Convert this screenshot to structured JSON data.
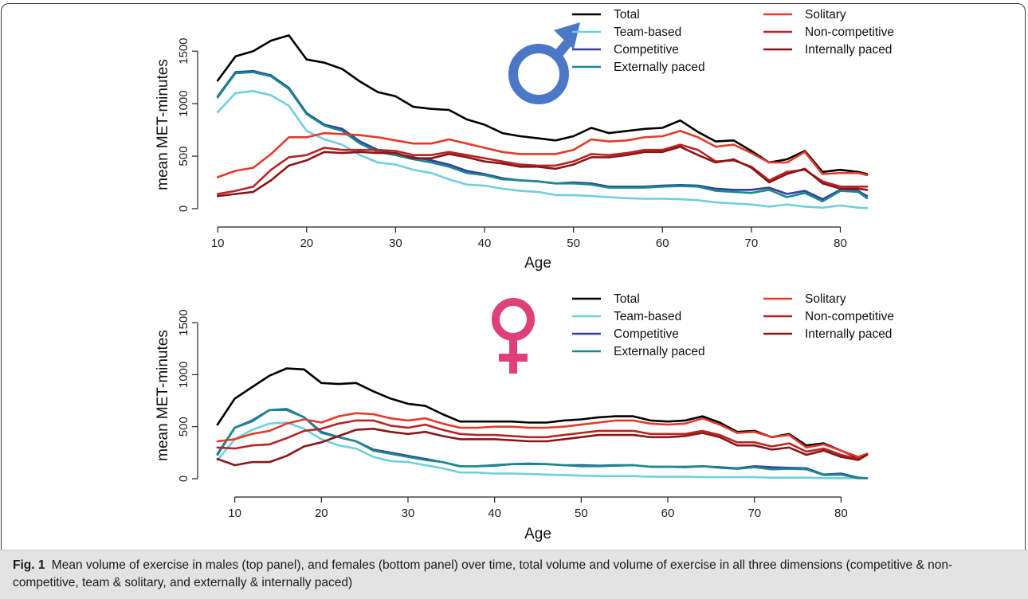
{
  "colors": {
    "total": "#000000",
    "team_based": "#6fcfdc",
    "competitive": "#3340a0",
    "externally_paced": "#1a8a8c",
    "solitary": "#e53a2a",
    "non_competitive": "#b72424",
    "internally_paced": "#8a1616",
    "male_symbol": "#4a78c6",
    "female_symbol": "#e0407a"
  },
  "chart_data": [
    {
      "type": "line",
      "panel": "male",
      "symbol": "male-symbol",
      "xlabel": "Age",
      "ylabel": "mean MET-minutes",
      "xlim": [
        9,
        83
      ],
      "ylim": [
        0,
        1600
      ],
      "xticks": [
        10,
        20,
        30,
        40,
        50,
        60,
        70,
        80
      ],
      "yticks": [
        0,
        500,
        1000,
        1500
      ],
      "legend_left": [
        "Total",
        "Team-based",
        "Competitive",
        "Externally paced"
      ],
      "legend_right": [
        "Solitary",
        "Non-competitive",
        "Internally paced"
      ],
      "x": [
        10,
        12,
        14,
        16,
        18,
        20,
        22,
        24,
        26,
        28,
        30,
        32,
        34,
        36,
        38,
        40,
        42,
        44,
        46,
        48,
        50,
        52,
        54,
        56,
        58,
        60,
        62,
        64,
        66,
        68,
        70,
        72,
        74,
        76,
        78,
        80,
        82,
        83
      ],
      "series": [
        {
          "name": "Total",
          "color_key": "total",
          "values": [
            1220,
            1450,
            1500,
            1600,
            1650,
            1420,
            1390,
            1330,
            1210,
            1110,
            1070,
            970,
            950,
            940,
            850,
            800,
            720,
            690,
            670,
            650,
            690,
            770,
            720,
            740,
            760,
            770,
            840,
            730,
            640,
            650,
            550,
            440,
            470,
            550,
            350,
            370,
            350,
            330
          ]
        },
        {
          "name": "Team-based",
          "color_key": "team_based",
          "values": [
            920,
            1100,
            1120,
            1080,
            980,
            740,
            660,
            610,
            510,
            440,
            420,
            370,
            340,
            280,
            230,
            220,
            190,
            170,
            160,
            130,
            130,
            120,
            110,
            100,
            95,
            95,
            90,
            80,
            60,
            50,
            40,
            20,
            40,
            20,
            10,
            30,
            10,
            5
          ]
        },
        {
          "name": "Competitive",
          "color_key": "competitive",
          "values": [
            1070,
            1300,
            1310,
            1270,
            1150,
            910,
            800,
            760,
            640,
            560,
            520,
            490,
            460,
            420,
            360,
            330,
            290,
            270,
            260,
            240,
            250,
            240,
            210,
            210,
            210,
            220,
            225,
            220,
            190,
            180,
            180,
            200,
            140,
            170,
            90,
            180,
            170,
            120
          ]
        },
        {
          "name": "Externally paced",
          "color_key": "externally_paced",
          "values": [
            1060,
            1290,
            1300,
            1260,
            1140,
            900,
            790,
            740,
            620,
            540,
            510,
            470,
            440,
            400,
            340,
            320,
            280,
            270,
            260,
            240,
            240,
            230,
            200,
            200,
            200,
            210,
            215,
            210,
            170,
            160,
            150,
            180,
            110,
            150,
            70,
            170,
            160,
            100
          ]
        },
        {
          "name": "Solitary",
          "color_key": "solitary",
          "values": [
            300,
            360,
            390,
            520,
            680,
            680,
            720,
            710,
            700,
            680,
            650,
            620,
            620,
            660,
            620,
            580,
            540,
            520,
            520,
            520,
            560,
            660,
            640,
            650,
            680,
            690,
            740,
            680,
            590,
            610,
            530,
            440,
            440,
            540,
            330,
            340,
            340,
            320
          ]
        },
        {
          "name": "Non-competitive",
          "color_key": "non_competitive",
          "values": [
            140,
            170,
            210,
            370,
            490,
            510,
            580,
            560,
            560,
            560,
            550,
            510,
            510,
            540,
            510,
            480,
            450,
            420,
            410,
            410,
            450,
            520,
            510,
            530,
            560,
            560,
            610,
            560,
            450,
            460,
            400,
            270,
            350,
            370,
            260,
            210,
            210,
            210
          ]
        },
        {
          "name": "Internally paced",
          "color_key": "internally_paced",
          "values": [
            120,
            140,
            160,
            270,
            410,
            460,
            540,
            530,
            540,
            530,
            530,
            480,
            480,
            520,
            490,
            450,
            430,
            400,
            400,
            380,
            420,
            490,
            490,
            510,
            540,
            540,
            590,
            510,
            440,
            470,
            390,
            250,
            330,
            380,
            240,
            190,
            190,
            180
          ]
        }
      ]
    },
    {
      "type": "line",
      "panel": "female",
      "symbol": "female-symbol",
      "xlabel": "Age",
      "ylabel": "mean MET-minutes",
      "xlim": [
        7,
        83
      ],
      "ylim": [
        0,
        1600
      ],
      "xticks": [
        10,
        20,
        30,
        40,
        50,
        60,
        70,
        80
      ],
      "yticks": [
        0,
        500,
        1000,
        1500
      ],
      "legend_left": [
        "Total",
        "Team-based",
        "Competitive",
        "Externally paced"
      ],
      "legend_right": [
        "Solitary",
        "Non-competitive",
        "Internally paced"
      ],
      "x": [
        8,
        10,
        12,
        14,
        16,
        18,
        20,
        22,
        24,
        26,
        28,
        30,
        32,
        34,
        36,
        38,
        40,
        42,
        44,
        46,
        48,
        50,
        52,
        54,
        56,
        58,
        60,
        62,
        64,
        66,
        68,
        70,
        72,
        74,
        76,
        78,
        80,
        82,
        83
      ],
      "series": [
        {
          "name": "Total",
          "color_key": "total",
          "values": [
            520,
            770,
            880,
            990,
            1060,
            1050,
            920,
            910,
            920,
            840,
            770,
            720,
            700,
            620,
            550,
            550,
            550,
            550,
            540,
            540,
            560,
            570,
            590,
            600,
            600,
            560,
            550,
            560,
            600,
            540,
            450,
            460,
            400,
            430,
            320,
            340,
            270,
            200,
            240
          ]
        },
        {
          "name": "Team-based",
          "color_key": "team_based",
          "values": [
            180,
            380,
            470,
            530,
            540,
            480,
            380,
            320,
            290,
            210,
            170,
            160,
            130,
            100,
            60,
            60,
            50,
            50,
            45,
            40,
            35,
            30,
            25,
            25,
            25,
            20,
            20,
            20,
            15,
            15,
            15,
            15,
            10,
            10,
            10,
            5,
            5,
            5,
            5
          ]
        },
        {
          "name": "Competitive",
          "color_key": "competitive",
          "values": [
            240,
            490,
            560,
            660,
            670,
            590,
            450,
            400,
            360,
            280,
            250,
            220,
            190,
            160,
            120,
            120,
            130,
            140,
            145,
            140,
            130,
            130,
            125,
            130,
            130,
            115,
            115,
            115,
            120,
            110,
            100,
            120,
            110,
            105,
            100,
            40,
            50,
            10,
            5
          ]
        },
        {
          "name": "Externally paced",
          "color_key": "externally_paced",
          "values": [
            230,
            490,
            550,
            660,
            660,
            590,
            440,
            400,
            360,
            270,
            240,
            210,
            180,
            160,
            120,
            120,
            125,
            140,
            140,
            140,
            130,
            120,
            120,
            125,
            130,
            115,
            115,
            110,
            120,
            105,
            95,
            110,
            90,
            95,
            90,
            35,
            40,
            5,
            5
          ]
        },
        {
          "name": "Solitary",
          "color_key": "solitary",
          "values": [
            360,
            380,
            430,
            460,
            530,
            570,
            540,
            600,
            630,
            620,
            580,
            560,
            580,
            530,
            490,
            490,
            500,
            500,
            490,
            490,
            500,
            520,
            540,
            560,
            560,
            530,
            520,
            530,
            580,
            520,
            440,
            450,
            400,
            420,
            300,
            330,
            270,
            210,
            240
          ]
        },
        {
          "name": "Non-competitive",
          "color_key": "non_competitive",
          "values": [
            300,
            290,
            320,
            330,
            390,
            460,
            480,
            530,
            560,
            560,
            510,
            490,
            520,
            470,
            430,
            420,
            420,
            410,
            400,
            400,
            420,
            440,
            460,
            460,
            460,
            430,
            430,
            430,
            460,
            420,
            350,
            350,
            310,
            340,
            260,
            290,
            230,
            190,
            230
          ]
        },
        {
          "name": "Internally paced",
          "color_key": "internally_paced",
          "values": [
            190,
            130,
            160,
            160,
            220,
            310,
            350,
            410,
            470,
            480,
            450,
            430,
            450,
            410,
            380,
            380,
            380,
            370,
            360,
            360,
            380,
            400,
            420,
            420,
            420,
            400,
            400,
            410,
            440,
            400,
            320,
            320,
            280,
            300,
            230,
            270,
            210,
            180,
            230
          ]
        }
      ]
    }
  ],
  "caption": {
    "label": "Fig. 1",
    "text": "Mean volume of exercise in males (top panel), and females (bottom panel) over time, total volume and volume of exercise in all three dimensions (competitive & non-competitive, team & solitary, and externally & internally paced)"
  }
}
